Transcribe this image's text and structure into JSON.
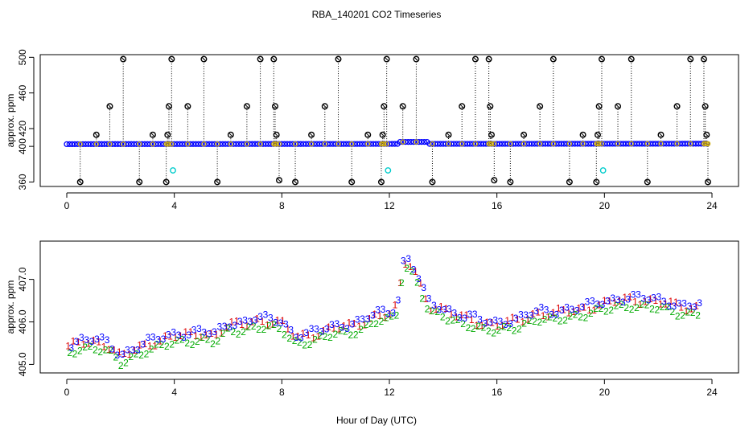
{
  "title": "RBA_140201  CO2 Timeseries",
  "colors": {
    "frame": "#000000",
    "blue": "#0000ff",
    "cyan": "#00cccc",
    "red": "#dd0000",
    "green": "#00aa00",
    "gold": "#ccaa00"
  },
  "chart_data": [
    {
      "type": "scatter",
      "ylabel": "approx. ppm",
      "xlim": [
        0,
        24
      ],
      "ylim": [
        355,
        503
      ],
      "xticks": [
        0,
        4,
        8,
        12,
        16,
        20,
        24
      ],
      "yticks": [
        360,
        400,
        420,
        460,
        500
      ],
      "baseline": {
        "start": 402.5,
        "bump": [
          12.3,
          13.4,
          405
        ]
      },
      "spikes": [
        {
          "x": 0.5,
          "y": 360
        },
        {
          "x": 1.1,
          "y": 413
        },
        {
          "x": 1.6,
          "y": 445
        },
        {
          "x": 2.1,
          "y": 498
        },
        {
          "x": 2.7,
          "y": 360
        },
        {
          "x": 3.2,
          "y": 413
        },
        {
          "x": 3.7,
          "y": 360
        },
        {
          "x": 3.75,
          "y": 413
        },
        {
          "x": 3.8,
          "y": 445
        },
        {
          "x": 3.9,
          "y": 498
        },
        {
          "x": 4.5,
          "y": 445
        },
        {
          "x": 5.1,
          "y": 498
        },
        {
          "x": 5.6,
          "y": 360
        },
        {
          "x": 6.1,
          "y": 413
        },
        {
          "x": 6.7,
          "y": 445
        },
        {
          "x": 7.2,
          "y": 498
        },
        {
          "x": 7.7,
          "y": 498
        },
        {
          "x": 7.75,
          "y": 445
        },
        {
          "x": 7.8,
          "y": 413
        },
        {
          "x": 7.9,
          "y": 362
        },
        {
          "x": 8.5,
          "y": 360
        },
        {
          "x": 9.1,
          "y": 413
        },
        {
          "x": 9.6,
          "y": 445
        },
        {
          "x": 10.1,
          "y": 498
        },
        {
          "x": 10.6,
          "y": 360
        },
        {
          "x": 11.2,
          "y": 413
        },
        {
          "x": 11.7,
          "y": 360
        },
        {
          "x": 11.75,
          "y": 413
        },
        {
          "x": 11.8,
          "y": 445
        },
        {
          "x": 11.9,
          "y": 498
        },
        {
          "x": 12.5,
          "y": 445
        },
        {
          "x": 13.0,
          "y": 498
        },
        {
          "x": 13.6,
          "y": 360
        },
        {
          "x": 14.2,
          "y": 413
        },
        {
          "x": 14.7,
          "y": 445
        },
        {
          "x": 15.2,
          "y": 498
        },
        {
          "x": 15.7,
          "y": 498
        },
        {
          "x": 15.75,
          "y": 445
        },
        {
          "x": 15.8,
          "y": 413
        },
        {
          "x": 15.9,
          "y": 362
        },
        {
          "x": 16.5,
          "y": 360
        },
        {
          "x": 17.0,
          "y": 413
        },
        {
          "x": 17.6,
          "y": 445
        },
        {
          "x": 18.1,
          "y": 498
        },
        {
          "x": 18.7,
          "y": 360
        },
        {
          "x": 19.2,
          "y": 413
        },
        {
          "x": 19.7,
          "y": 360
        },
        {
          "x": 19.75,
          "y": 413
        },
        {
          "x": 19.8,
          "y": 445
        },
        {
          "x": 19.9,
          "y": 498
        },
        {
          "x": 20.5,
          "y": 445
        },
        {
          "x": 21.0,
          "y": 498
        },
        {
          "x": 21.6,
          "y": 360
        },
        {
          "x": 22.1,
          "y": 413
        },
        {
          "x": 22.7,
          "y": 445
        },
        {
          "x": 23.2,
          "y": 498
        },
        {
          "x": 23.7,
          "y": 498
        },
        {
          "x": 23.75,
          "y": 445
        },
        {
          "x": 23.8,
          "y": 413
        },
        {
          "x": 23.85,
          "y": 360
        }
      ],
      "cyan_points": [
        {
          "x": 3.95,
          "y": 373
        },
        {
          "x": 11.95,
          "y": 373
        },
        {
          "x": 19.95,
          "y": 373
        }
      ]
    },
    {
      "type": "line",
      "xlabel": "Hour of Day (UTC)",
      "ylabel": "approx. ppm",
      "xlim": [
        0,
        24
      ],
      "ylim": [
        404.8,
        407.9
      ],
      "xticks": [
        0,
        4,
        8,
        12,
        16,
        20,
        24
      ],
      "yticks": [
        405.0,
        406.0,
        407.0
      ],
      "ytick_labels": [
        "405.0",
        "406.0",
        "407.0"
      ],
      "series": [
        {
          "name": "1",
          "color": "red",
          "offset": 0.05
        },
        {
          "name": "2",
          "color": "green",
          "offset": -0.1
        },
        {
          "name": "3",
          "color": "blue",
          "offset": 0.1
        }
      ],
      "x": [
        0.0,
        0.5,
        1.0,
        1.5,
        2.0,
        2.5,
        3.0,
        3.5,
        4.0,
        4.5,
        5.0,
        5.5,
        6.0,
        6.5,
        7.0,
        7.5,
        8.0,
        8.5,
        9.0,
        9.5,
        10.0,
        10.5,
        11.0,
        11.5,
        12.0,
        12.3,
        12.5,
        12.7,
        13.0,
        13.3,
        13.5,
        14.0,
        14.5,
        15.0,
        15.5,
        16.0,
        16.5,
        17.0,
        17.5,
        18.0,
        18.5,
        19.0,
        19.5,
        20.0,
        20.5,
        21.0,
        21.5,
        22.0,
        22.5,
        23.0,
        23.5
      ],
      "y": [
        405.3,
        405.5,
        405.5,
        405.4,
        405.1,
        405.3,
        405.45,
        405.5,
        405.6,
        405.65,
        405.7,
        405.6,
        405.85,
        405.9,
        406.0,
        405.95,
        405.9,
        405.6,
        405.65,
        405.7,
        405.8,
        405.85,
        405.95,
        406.1,
        406.1,
        406.3,
        407.3,
        407.4,
        407.1,
        406.6,
        406.3,
        406.2,
        406.1,
        406.05,
        405.9,
        405.85,
        405.95,
        406.05,
        406.15,
        406.1,
        406.2,
        406.25,
        406.3,
        406.35,
        406.45,
        406.5,
        406.45,
        406.4,
        406.35,
        406.3,
        406.3
      ]
    }
  ],
  "xlabel": "Hour of Day (UTC)"
}
